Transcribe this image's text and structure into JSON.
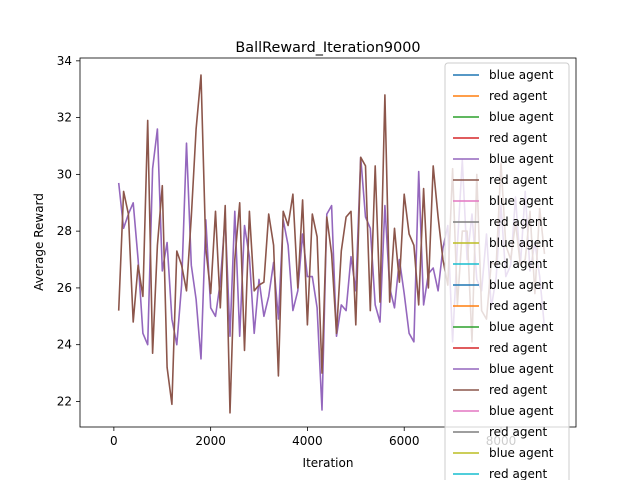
{
  "chart_data": {
    "type": "line",
    "title": "BallReward_Iteration9000",
    "xlabel": "Iteration",
    "ylabel": "Average Reward",
    "xlim": [
      -700,
      9550
    ],
    "ylim": [
      21.1,
      34.1
    ],
    "xticks": [
      0,
      2000,
      4000,
      6000,
      8000
    ],
    "yticks": [
      22,
      24,
      26,
      28,
      30,
      32,
      34
    ],
    "grid": false,
    "legend_position": "top-right",
    "legend_entries": [
      {
        "label": "blue agent",
        "color": "#1f77b4"
      },
      {
        "label": "red agent",
        "color": "#ff7f0e"
      },
      {
        "label": "blue agent",
        "color": "#2ca02c"
      },
      {
        "label": "red agent",
        "color": "#d62728"
      },
      {
        "label": "blue agent",
        "color": "#9467bd"
      },
      {
        "label": "red agent",
        "color": "#8c564b"
      },
      {
        "label": "blue agent",
        "color": "#e377c2"
      },
      {
        "label": "red agent",
        "color": "#7f7f7f"
      },
      {
        "label": "blue agent",
        "color": "#bcbd22"
      },
      {
        "label": "red agent",
        "color": "#17becf"
      },
      {
        "label": "blue agent",
        "color": "#1f77b4"
      },
      {
        "label": "red agent",
        "color": "#ff7f0e"
      },
      {
        "label": "blue agent",
        "color": "#2ca02c"
      },
      {
        "label": "red agent",
        "color": "#d62728"
      },
      {
        "label": "blue agent",
        "color": "#9467bd"
      },
      {
        "label": "red agent",
        "color": "#8c564b"
      },
      {
        "label": "blue agent",
        "color": "#e377c2"
      },
      {
        "label": "red agent",
        "color": "#7f7f7f"
      },
      {
        "label": "blue agent",
        "color": "#bcbd22"
      },
      {
        "label": "red agent",
        "color": "#17becf"
      }
    ],
    "series": [
      {
        "name": "blue agent",
        "color": "#9467bd",
        "x": [
          100,
          200,
          300,
          400,
          500,
          600,
          700,
          800,
          900,
          1000,
          1100,
          1200,
          1300,
          1400,
          1500,
          1600,
          1700,
          1800,
          1900,
          2000,
          2100,
          2200,
          2300,
          2400,
          2500,
          2600,
          2700,
          2800,
          2900,
          3000,
          3100,
          3200,
          3300,
          3400,
          3500,
          3600,
          3700,
          3800,
          3900,
          4000,
          4100,
          4200,
          4300,
          4400,
          4500,
          4600,
          4700,
          4800,
          4900,
          5000,
          5100,
          5200,
          5300,
          5400,
          5500,
          5600,
          5700,
          5800,
          5900,
          6000,
          6100,
          6200,
          6300,
          6400,
          6500,
          6600,
          6700,
          6800,
          6900,
          7000,
          7100,
          7200,
          7300,
          7400,
          7500,
          7600,
          7700,
          7800,
          7900,
          8000,
          8100,
          8200,
          8300,
          8400,
          8500,
          8600,
          8700,
          8800,
          8900
        ],
        "values": [
          29.7,
          28.1,
          28.6,
          29.0,
          27.0,
          24.4,
          24.0,
          30.2,
          31.6,
          26.6,
          27.6,
          24.9,
          24.0,
          26.1,
          31.1,
          26.8,
          25.6,
          23.5,
          28.4,
          25.3,
          25.0,
          26.2,
          28.5,
          24.3,
          28.7,
          24.3,
          28.2,
          27.1,
          24.4,
          26.3,
          25.0,
          25.7,
          26.9,
          24.9,
          28.4,
          27.5,
          25.2,
          25.9,
          27.9,
          26.4,
          26.4,
          25.3,
          21.7,
          28.6,
          28.9,
          24.3,
          25.4,
          25.2,
          27.1,
          25.9,
          30.6,
          28.5,
          28.1,
          25.4,
          24.8,
          28.9,
          26.0,
          25.3,
          27.0,
          25.8,
          24.4,
          24.1,
          30.1,
          25.4,
          26.5,
          26.7,
          25.9,
          27.4,
          28.2,
          24.1,
          27.5,
          30.5,
          27.0,
          28.6,
          26.3,
          25.9,
          27.9,
          25.3,
          26.4,
          28.9,
          26.4,
          26.8,
          29.2,
          26.8,
          29.4,
          26.6,
          27.6,
          26.4,
          24.6
        ]
      },
      {
        "name": "red agent",
        "color": "#8c564b",
        "x": [
          100,
          200,
          300,
          400,
          500,
          600,
          700,
          800,
          900,
          1000,
          1100,
          1200,
          1300,
          1400,
          1500,
          1600,
          1700,
          1800,
          1900,
          2000,
          2100,
          2200,
          2300,
          2400,
          2500,
          2600,
          2700,
          2800,
          2900,
          3000,
          3100,
          3200,
          3300,
          3400,
          3500,
          3600,
          3700,
          3800,
          3900,
          4000,
          4100,
          4200,
          4300,
          4400,
          4500,
          4600,
          4700,
          4800,
          4900,
          5000,
          5100,
          5200,
          5300,
          5400,
          5500,
          5600,
          5700,
          5800,
          5900,
          6000,
          6100,
          6200,
          6300,
          6400,
          6500,
          6600,
          6700,
          6800,
          6900,
          7000,
          7100,
          7200,
          7300,
          7400,
          7500,
          7600,
          7700,
          7800,
          7900,
          8000,
          8100,
          8200,
          8300,
          8400,
          8500,
          8600,
          8700,
          8800,
          8900
        ],
        "values": [
          25.2,
          29.4,
          28.6,
          24.8,
          26.8,
          25.7,
          31.9,
          23.7,
          27.5,
          29.6,
          23.2,
          21.9,
          27.3,
          26.8,
          25.9,
          28.5,
          31.6,
          33.5,
          27.4,
          25.8,
          28.7,
          25.3,
          28.9,
          21.6,
          27.0,
          29.0,
          23.8,
          28.7,
          25.9,
          26.1,
          26.2,
          28.6,
          27.5,
          22.9,
          28.7,
          28.2,
          29.3,
          26.0,
          29.1,
          24.7,
          28.6,
          27.8,
          23.0,
          28.5,
          27.2,
          24.4,
          27.3,
          28.5,
          28.7,
          24.7,
          30.6,
          30.3,
          25.2,
          30.3,
          25.5,
          32.8,
          25.5,
          28.1,
          26.2,
          29.3,
          27.9,
          27.5,
          25.4,
          29.5,
          26.0,
          30.3,
          28.5,
          27.0,
          26.1,
          30.2,
          25.4,
          28.0,
          28.0,
          24.1,
          30.0,
          25.2,
          24.9,
          26.9,
          26.8,
          30.4,
          27.5,
          27.0,
          28.3,
          26.8,
          27.0,
          28.7,
          25.8,
          28.8,
          27.2
        ]
      }
    ]
  }
}
